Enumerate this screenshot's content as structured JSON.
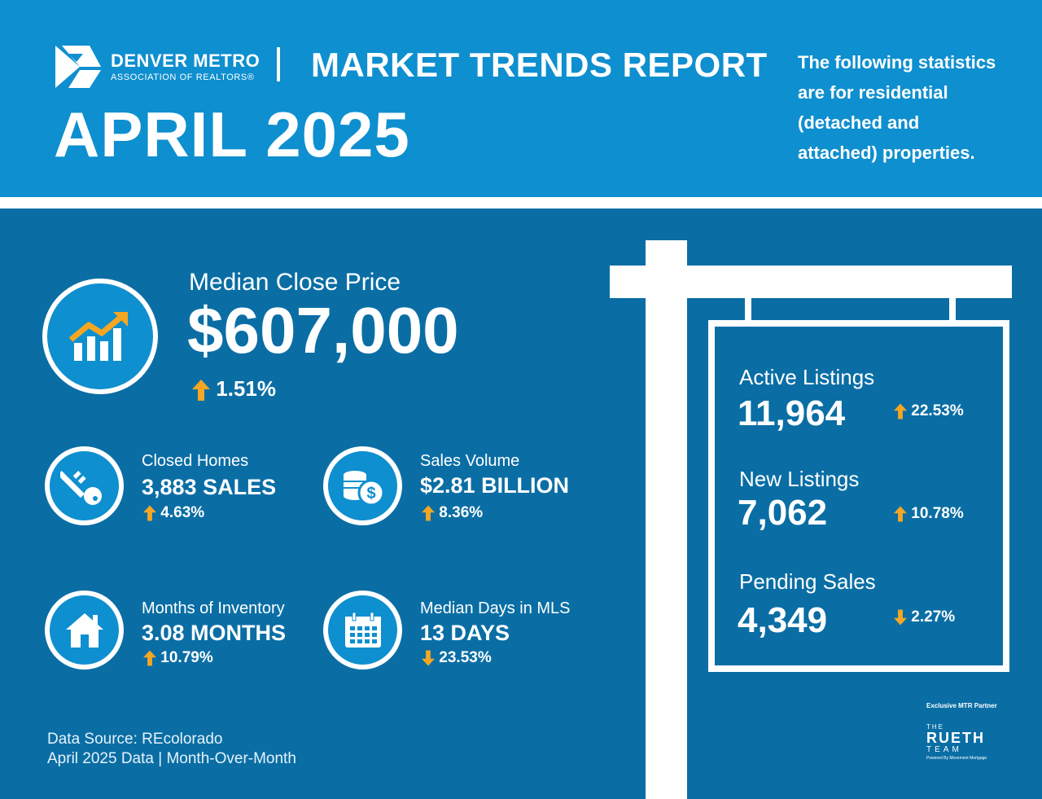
{
  "header": {
    "org_name": "DENVER METRO",
    "org_sub": "ASSOCIATION OF REALTORS®",
    "report_title": "MARKET TRENDS REPORT",
    "month_title": "APRIL 2025",
    "intro_lines": [
      "The following statistics",
      "are for residential",
      "(detached and",
      "attached) properties."
    ]
  },
  "featured": {
    "label": "Median Close Price",
    "value": "$607,000",
    "change": "1.51%",
    "direction": "up",
    "icon": "rising-chart-icon"
  },
  "metrics": [
    {
      "label": "Closed Homes",
      "value": "3,883 SALES",
      "change": "4.63%",
      "direction": "up",
      "icon": "key-icon"
    },
    {
      "label": "Sales Volume",
      "value": "$2.81 BILLION",
      "change": "8.36%",
      "direction": "up",
      "icon": "coins-icon"
    },
    {
      "label": "Months of Inventory",
      "value": "3.08 MONTHS",
      "change": "10.79%",
      "direction": "up",
      "icon": "house-icon"
    },
    {
      "label": "Median Days in MLS",
      "value": "13 DAYS",
      "change": "23.53%",
      "direction": "down",
      "icon": "calendar-icon"
    }
  ],
  "sign": [
    {
      "label": "Active Listings",
      "value": "11,964",
      "change": "22.53%",
      "direction": "up"
    },
    {
      "label": "New Listings",
      "value": "7,062",
      "change": "10.78%",
      "direction": "up"
    },
    {
      "label": "Pending Sales",
      "value": "4,349",
      "change": "2.27%",
      "direction": "down"
    }
  ],
  "footer": {
    "source_line1": "Data Source: REcolorado",
    "source_line2": "April 2025 Data | Month-Over-Month",
    "partner_label": "Exclusive MTR Partner",
    "partner_the": "THE",
    "partner_name": "RUETH",
    "partner_team": "TEAM",
    "partner_powered": "Powered By Movement Mortgage"
  },
  "colors": {
    "header_bg": "#0e8fcf",
    "main_bg": "#0a6ea5",
    "accent": "#f5a623",
    "text": "#ffffff"
  }
}
